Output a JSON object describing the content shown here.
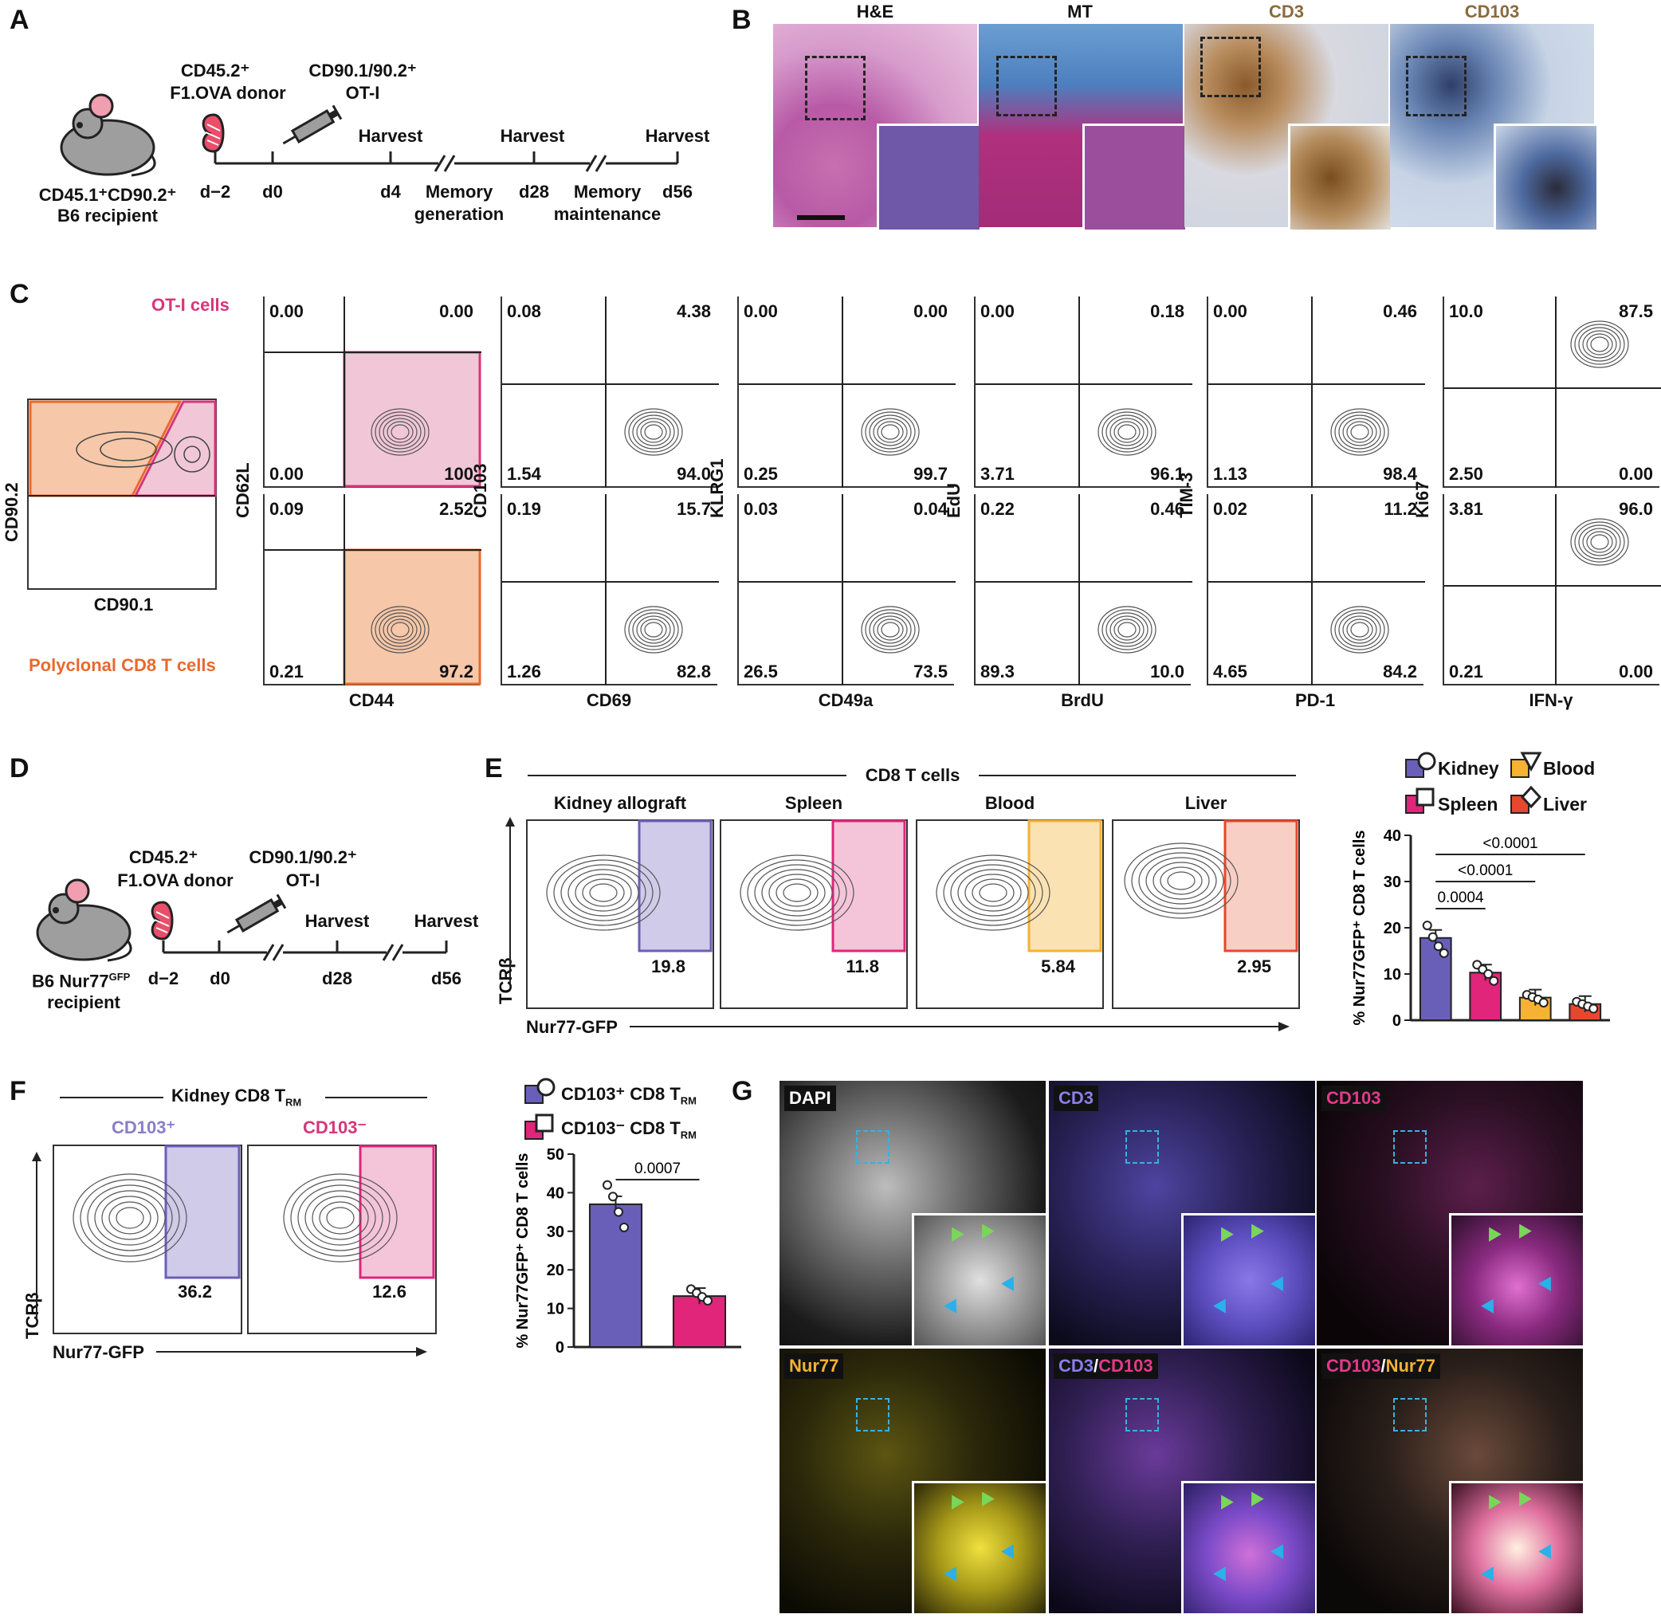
{
  "panel_labels": {
    "A": "A",
    "B": "B",
    "C": "C",
    "D": "D",
    "E": "E",
    "F": "F",
    "G": "G"
  },
  "colors": {
    "kidney": "#6a5fb8",
    "spleen": "#e0257a",
    "blood": "#f5b233",
    "liver": "#e8472f",
    "otI": "#d8357a",
    "poly": "#e8692e",
    "he": "#c46cb0",
    "mt": "#a23c8a",
    "cd3": "#8b6a3e",
    "cd103_ihc": "#8b6a3e"
  },
  "A": {
    "donor": "CD45.2⁺",
    "donor2": "F1.OVA donor",
    "otI": "CD90.1/90.2⁺",
    "otI2": "OT-I",
    "recipient": "CD45.1⁺CD90.2⁺",
    "recipient2": "B6 recipient",
    "days": [
      "d−2",
      "d0",
      "d4",
      "d28",
      "d56"
    ],
    "harvest": "Harvest",
    "memgen1": "Memory",
    "memgen2": "generation",
    "memmain1": "Memory",
    "memmain2": "maintenance"
  },
  "B": {
    "titles": [
      "H&E",
      "MT",
      "CD3",
      "CD103"
    ]
  },
  "C": {
    "otI_label": "OT-I cells",
    "poly_label": "Polyclonal CD8 T cells",
    "pre_x": "CD90.1",
    "pre_y": "CD90.2",
    "plots": [
      {
        "x": "CD44",
        "y": "CD62L",
        "top": [
          "0.00",
          "0.00",
          "0.00",
          "100"
        ],
        "bot": [
          "0.09",
          "2.52",
          "0.21",
          "97.2"
        ]
      },
      {
        "x": "CD69",
        "y": "CD103",
        "top": [
          "0.08",
          "4.38",
          "1.54",
          "94.0"
        ],
        "bot": [
          "0.19",
          "15.7",
          "1.26",
          "82.8"
        ]
      },
      {
        "x": "CD49a",
        "y": "KLRG1",
        "top": [
          "0.00",
          "0.00",
          "0.25",
          "99.7"
        ],
        "bot": [
          "0.03",
          "0.04",
          "26.5",
          "73.5"
        ]
      },
      {
        "x": "BrdU",
        "y": "EdU",
        "top": [
          "0.00",
          "0.18",
          "3.71",
          "96.1"
        ],
        "bot": [
          "0.22",
          "0.46",
          "89.3",
          "10.0"
        ]
      },
      {
        "x": "PD-1",
        "y": "TIM-3",
        "top": [
          "0.00",
          "0.46",
          "1.13",
          "98.4"
        ],
        "bot": [
          "0.02",
          "11.2",
          "4.65",
          "84.2"
        ]
      },
      {
        "x": "IFN-γ",
        "y": "Ki67",
        "top": [
          "10.0",
          "87.5",
          "2.50",
          "0.00"
        ],
        "bot": [
          "3.81",
          "96.0",
          "0.21",
          "0.00"
        ]
      }
    ]
  },
  "D": {
    "donor": "CD45.2⁺",
    "donor2": "F1.OVA donor",
    "otI": "CD90.1/90.2⁺",
    "otI2": "OT-I",
    "recipient": "B6 Nur77",
    "recipient_sup": "GFP",
    "recipient2": "recipient",
    "days": [
      "d−2",
      "d0",
      "d28",
      "d56"
    ],
    "harvest": "Harvest"
  },
  "E": {
    "header": "CD8 T cells",
    "tissues": [
      "Kidney allograft",
      "Spleen",
      "Blood",
      "Liver"
    ],
    "values": [
      "19.8",
      "11.8",
      "5.84",
      "2.95"
    ],
    "xaxis": "Nur77-GFP",
    "yaxis": "TCRβ",
    "legend": [
      "Kidney",
      "Blood",
      "Spleen",
      "Liver"
    ],
    "ylabel": "% Nur77GFP⁺ CD8 T cells",
    "pvals": [
      "<0.0001",
      "<0.0001",
      "0.0004"
    ]
  },
  "F": {
    "header": "Kidney CD8 T",
    "header_sub": "RM",
    "gates": [
      "CD103⁺",
      "CD103⁻"
    ],
    "values": [
      "36.2",
      "12.6"
    ],
    "xaxis": "Nur77-GFP",
    "yaxis": "TCRβ",
    "legend1": "CD103⁺ CD8 T",
    "legend2": "CD103⁻ CD8 T",
    "legend_sub": "RM",
    "ylabel": "% Nur77GFP⁺ CD8 T cells",
    "pval": "0.0007"
  },
  "G": {
    "channels": [
      "DAPI",
      "CD3",
      "CD103",
      "Nur77",
      "CD3/CD103",
      "CD103/Nur77"
    ]
  },
  "chart_data": [
    {
      "type": "bar",
      "categories": [
        "Kidney",
        "Spleen",
        "Blood",
        "Liver"
      ],
      "values": [
        17.8,
        10.3,
        4.9,
        3.5
      ],
      "points": [
        [
          20.5,
          18,
          16,
          14.5
        ],
        [
          12,
          11,
          10,
          8.5
        ],
        [
          5.5,
          5,
          4.5,
          3.8
        ],
        [
          4,
          3.5,
          3,
          2.5
        ]
      ],
      "ylabel": "% Nur77GFP⁺ CD8 T cells",
      "ylim": [
        0,
        40
      ],
      "yticks": [
        0,
        10,
        20,
        30,
        40
      ]
    },
    {
      "type": "bar",
      "categories": [
        "CD103⁺ CD8 TRM",
        "CD103⁻ CD8 TRM"
      ],
      "values": [
        37,
        13.2
      ],
      "points": [
        [
          42,
          39,
          35,
          31
        ],
        [
          15,
          14,
          13,
          12
        ]
      ],
      "ylabel": "% Nur77GFP⁺ CD8 T cells",
      "ylim": [
        0,
        50
      ],
      "yticks": [
        0,
        10,
        20,
        30,
        40,
        50
      ]
    }
  ]
}
